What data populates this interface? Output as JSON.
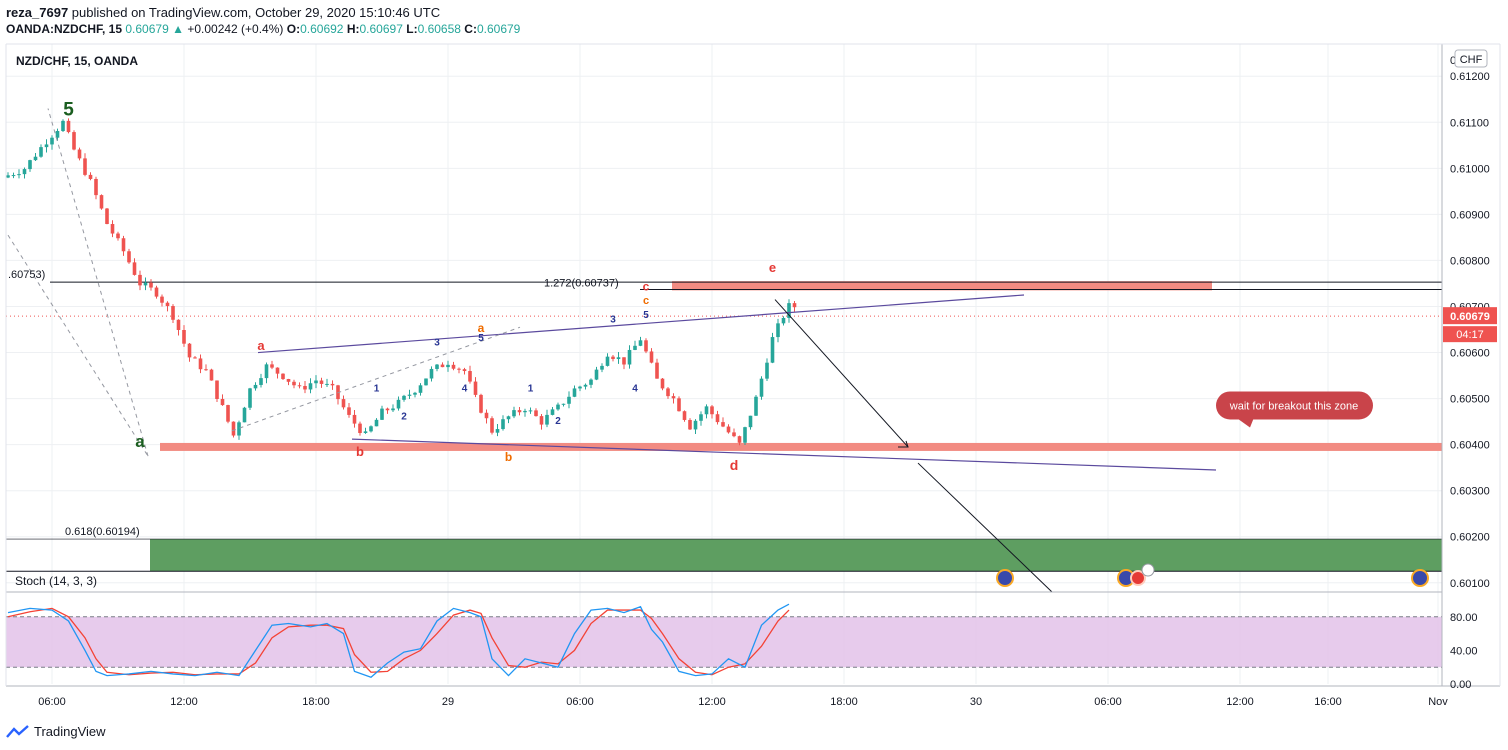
{
  "header": {
    "user": "reza_7697",
    "published_text": "published on TradingView.com, October 29, 2020 15:10:46 UTC",
    "symbol": "OANDA:NZDCHF, 15",
    "last": "0.60679",
    "change": "+0.00242 (+0.4%)",
    "o_label": "O:",
    "o": "0.60692",
    "h_label": "H:",
    "h": "0.60697",
    "l_label": "L:",
    "l": "0.60658",
    "c_label": "C:",
    "c": "0.60679"
  },
  "pane_title": "NZD/CHF, 15, OANDA",
  "currency_badge": "CHF",
  "price_tag": "0.60679",
  "countdown": "04:17",
  "footer": {
    "brand": "TradingView"
  },
  "colors": {
    "up": "#26a69a",
    "down": "#ef5350",
    "resistance": "#f28b82",
    "support_zone": "#5e9e61",
    "stoch_fill": "#e1bee7",
    "stoch_k": "#2196f3",
    "stoch_d": "#f44336",
    "wedge": "#5b4a9e"
  },
  "chart_data": {
    "type": "candlestick",
    "price_axis": {
      "min": 0.6008,
      "max": 0.6127,
      "ticks": [
        "0.60100",
        "0.60200",
        "0.60300",
        "0.60400",
        "0.60500",
        "0.60600",
        "0.60700",
        "0.60800",
        "0.60900",
        "0.61000",
        "0.61100",
        "0.61200"
      ],
      "top_cut_label": "0.6"
    },
    "time_axis": {
      "labels": [
        {
          "label": "06:00",
          "i": 8
        },
        {
          "label": "12:00",
          "i": 32
        },
        {
          "label": "18:00",
          "i": 56
        },
        {
          "label": "29",
          "i": 80
        },
        {
          "label": "06:00",
          "i": 104
        },
        {
          "label": "12:00",
          "i": 128
        },
        {
          "label": "18:00",
          "i": 152
        },
        {
          "label": "30",
          "i": 176
        },
        {
          "label": "06:00",
          "i": 200
        },
        {
          "label": "12:00",
          "i": 224
        },
        {
          "label": "16:00",
          "i": 240
        },
        {
          "label": "Nov",
          "i": 260
        }
      ]
    },
    "close_path": [
      [
        0,
        0.6098
      ],
      [
        4,
        0.61
      ],
      [
        8,
        0.6106
      ],
      [
        11,
        0.611
      ],
      [
        13,
        0.6104
      ],
      [
        16,
        0.6097
      ],
      [
        19,
        0.6088
      ],
      [
        22,
        0.6082
      ],
      [
        25,
        0.6075
      ],
      [
        28,
        0.6073
      ],
      [
        31,
        0.6068
      ],
      [
        34,
        0.6059
      ],
      [
        37,
        0.6056
      ],
      [
        40,
        0.6048
      ],
      [
        42,
        0.6042
      ],
      [
        45,
        0.6052
      ],
      [
        48,
        0.6057
      ],
      [
        51,
        0.6055
      ],
      [
        54,
        0.6052
      ],
      [
        57,
        0.6054
      ],
      [
        60,
        0.6052
      ],
      [
        63,
        0.6046
      ],
      [
        66,
        0.6042
      ],
      [
        69,
        0.6047
      ],
      [
        72,
        0.6049
      ],
      [
        75,
        0.6052
      ],
      [
        78,
        0.6056
      ],
      [
        81,
        0.6058
      ],
      [
        84,
        0.6056
      ],
      [
        86,
        0.605
      ],
      [
        89,
        0.6043
      ],
      [
        92,
        0.6046
      ],
      [
        95,
        0.6048
      ],
      [
        98,
        0.6045
      ],
      [
        101,
        0.6048
      ],
      [
        104,
        0.6052
      ],
      [
        107,
        0.6054
      ],
      [
        110,
        0.606
      ],
      [
        113,
        0.6058
      ],
      [
        116,
        0.6063
      ],
      [
        119,
        0.6054
      ],
      [
        122,
        0.605
      ],
      [
        125,
        0.6044
      ],
      [
        128,
        0.6048
      ],
      [
        131,
        0.6044
      ],
      [
        134,
        0.604
      ],
      [
        137,
        0.605
      ],
      [
        140,
        0.6063
      ],
      [
        142,
        0.6068
      ],
      [
        143,
        0.607
      ]
    ],
    "annotations": {
      "resistance_zone": [
        0.60735,
        0.60755
      ],
      "support_line": 0.60395,
      "support_zone": [
        0.60125,
        0.60195
      ],
      "fib_1272_label": "1.272(0.60737)",
      "fib_0618_label": "0.618(0.60194)",
      "left_level_label": ".60753)",
      "callout": "wait for breakout this zone",
      "wave_labels": [
        {
          "t": "5",
          "i": 11,
          "p": 0.61115,
          "c": "#1b5e20",
          "s": 19
        },
        {
          "t": "a",
          "i": 24,
          "p": 0.60395,
          "c": "#1b5e20",
          "s": 17
        },
        {
          "t": "a",
          "i": 46,
          "p": 0.60605,
          "c": "#e53935",
          "s": 13
        },
        {
          "t": "b",
          "i": 64,
          "p": 0.60375,
          "c": "#e53935",
          "s": 13
        },
        {
          "t": "a",
          "i": 86,
          "p": 0.60645,
          "c": "#ef6c00",
          "s": 12
        },
        {
          "t": "b",
          "i": 91,
          "p": 0.60365,
          "c": "#ef6c00",
          "s": 12
        },
        {
          "t": "c",
          "i": 116,
          "p": 0.60735,
          "c": "#e53935",
          "s": 12
        },
        {
          "t": "c",
          "i": 116,
          "p": 0.60705,
          "c": "#ef6c00",
          "s": 11
        },
        {
          "t": "e",
          "i": 139,
          "p": 0.60775,
          "c": "#e53935",
          "s": 13
        },
        {
          "t": "d",
          "i": 132,
          "p": 0.60345,
          "c": "#e53935",
          "s": 14
        },
        {
          "t": "1",
          "i": 67,
          "p": 0.60515,
          "c": "#283593",
          "s": 10
        },
        {
          "t": "2",
          "i": 72,
          "p": 0.60455,
          "c": "#283593",
          "s": 10
        },
        {
          "t": "3",
          "i": 78,
          "p": 0.60615,
          "c": "#283593",
          "s": 10
        },
        {
          "t": "4",
          "i": 83,
          "p": 0.60515,
          "c": "#283593",
          "s": 10
        },
        {
          "t": "5",
          "i": 86,
          "p": 0.60625,
          "c": "#283593",
          "s": 10
        },
        {
          "t": "1",
          "i": 95,
          "p": 0.60515,
          "c": "#283593",
          "s": 10
        },
        {
          "t": "2",
          "i": 100,
          "p": 0.60445,
          "c": "#283593",
          "s": 10
        },
        {
          "t": "3",
          "i": 110,
          "p": 0.60665,
          "c": "#283593",
          "s": 10
        },
        {
          "t": "4",
          "i": 114,
          "p": 0.60515,
          "c": "#283593",
          "s": 10
        },
        {
          "t": "5",
          "i": 116,
          "p": 0.60675,
          "c": "#283593",
          "s": 10
        }
      ]
    },
    "indicator": {
      "name": "Stoch (14, 3, 3)",
      "ticks": [
        "80.00",
        "40.00",
        "0.00"
      ],
      "levels": [
        80,
        20
      ],
      "k": [
        [
          0,
          85
        ],
        [
          4,
          90
        ],
        [
          8,
          88
        ],
        [
          11,
          75
        ],
        [
          14,
          40
        ],
        [
          16,
          15
        ],
        [
          18,
          10
        ],
        [
          22,
          12
        ],
        [
          26,
          15
        ],
        [
          30,
          12
        ],
        [
          34,
          10
        ],
        [
          38,
          14
        ],
        [
          42,
          10
        ],
        [
          45,
          40
        ],
        [
          48,
          70
        ],
        [
          51,
          72
        ],
        [
          55,
          68
        ],
        [
          58,
          72
        ],
        [
          61,
          60
        ],
        [
          63,
          15
        ],
        [
          66,
          8
        ],
        [
          69,
          25
        ],
        [
          72,
          38
        ],
        [
          75,
          42
        ],
        [
          78,
          75
        ],
        [
          81,
          90
        ],
        [
          84,
          85
        ],
        [
          86,
          80
        ],
        [
          88,
          30
        ],
        [
          91,
          10
        ],
        [
          94,
          30
        ],
        [
          97,
          25
        ],
        [
          100,
          20
        ],
        [
          103,
          60
        ],
        [
          106,
          88
        ],
        [
          109,
          90
        ],
        [
          112,
          85
        ],
        [
          115,
          92
        ],
        [
          117,
          65
        ],
        [
          119,
          50
        ],
        [
          122,
          15
        ],
        [
          125,
          10
        ],
        [
          128,
          12
        ],
        [
          131,
          30
        ],
        [
          134,
          20
        ],
        [
          137,
          70
        ],
        [
          140,
          88
        ],
        [
          142,
          95
        ]
      ],
      "d": [
        [
          0,
          80
        ],
        [
          4,
          86
        ],
        [
          8,
          90
        ],
        [
          11,
          80
        ],
        [
          14,
          55
        ],
        [
          16,
          30
        ],
        [
          18,
          14
        ],
        [
          22,
          11
        ],
        [
          26,
          13
        ],
        [
          30,
          14
        ],
        [
          34,
          11
        ],
        [
          38,
          12
        ],
        [
          42,
          12
        ],
        [
          45,
          25
        ],
        [
          48,
          55
        ],
        [
          51,
          68
        ],
        [
          55,
          70
        ],
        [
          58,
          70
        ],
        [
          61,
          66
        ],
        [
          63,
          35
        ],
        [
          66,
          14
        ],
        [
          69,
          15
        ],
        [
          72,
          30
        ],
        [
          75,
          40
        ],
        [
          78,
          60
        ],
        [
          81,
          82
        ],
        [
          84,
          88
        ],
        [
          86,
          84
        ],
        [
          88,
          55
        ],
        [
          91,
          22
        ],
        [
          94,
          20
        ],
        [
          97,
          26
        ],
        [
          100,
          24
        ],
        [
          103,
          40
        ],
        [
          106,
          72
        ],
        [
          109,
          88
        ],
        [
          112,
          88
        ],
        [
          115,
          88
        ],
        [
          117,
          78
        ],
        [
          119,
          60
        ],
        [
          122,
          30
        ],
        [
          125,
          14
        ],
        [
          128,
          11
        ],
        [
          131,
          20
        ],
        [
          134,
          24
        ],
        [
          137,
          45
        ],
        [
          140,
          75
        ],
        [
          142,
          88
        ]
      ]
    }
  }
}
